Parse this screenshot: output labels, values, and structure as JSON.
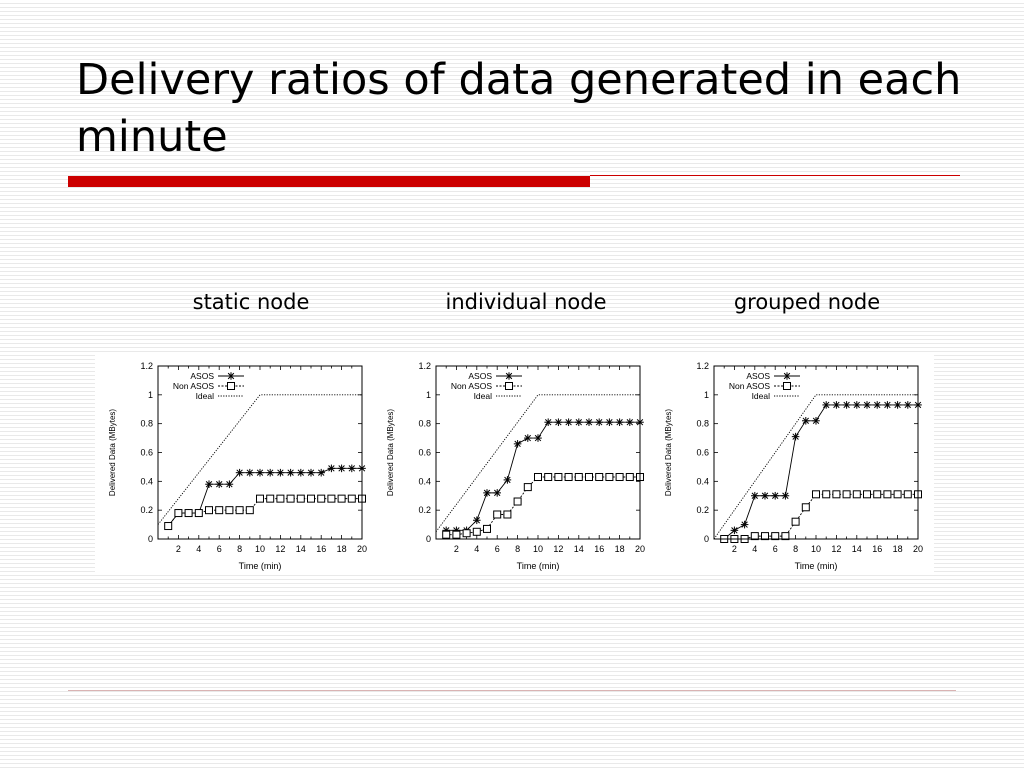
{
  "slide": {
    "title": "Delivery ratios of data generated in each minute",
    "accent_color": "#cc0000",
    "rule_color": "#d9b3b3"
  },
  "captions": [
    "static node",
    "individual node",
    "grouped node"
  ],
  "chart_data": [
    {
      "type": "line",
      "caption": "static node",
      "xlabel": "Time (min)",
      "ylabel": "Delivered Data (MBytes)",
      "xlim": [
        0,
        20
      ],
      "ylim": [
        0,
        1.2
      ],
      "xticks": [
        "2",
        "4",
        "6",
        "8",
        "10",
        "12",
        "14",
        "16",
        "18",
        "20"
      ],
      "yticks": [
        "0",
        "0.2",
        "0.4",
        "0.6",
        "0.8",
        "1",
        "1.2"
      ],
      "legend_position": "top-left",
      "x": [
        1,
        2,
        3,
        4,
        5,
        6,
        7,
        8,
        9,
        10,
        11,
        12,
        13,
        14,
        15,
        16,
        17,
        18,
        19,
        20
      ],
      "series": [
        {
          "name": "ASOS",
          "marker": "asterisk",
          "values": [
            0.09,
            0.18,
            0.18,
            0.18,
            0.38,
            0.38,
            0.38,
            0.46,
            0.46,
            0.46,
            0.46,
            0.46,
            0.46,
            0.46,
            0.46,
            0.46,
            0.49,
            0.49,
            0.49,
            0.49
          ]
        },
        {
          "name": "Non ASOS",
          "marker": "square",
          "values": [
            0.09,
            0.18,
            0.18,
            0.18,
            0.2,
            0.2,
            0.2,
            0.2,
            0.2,
            0.28,
            0.28,
            0.28,
            0.28,
            0.28,
            0.28,
            0.28,
            0.28,
            0.28,
            0.28,
            0.28
          ]
        },
        {
          "name": "Ideal",
          "marker": "none",
          "points": [
            [
              0,
              0.1
            ],
            [
              10,
              1
            ],
            [
              20,
              1
            ]
          ]
        }
      ]
    },
    {
      "type": "line",
      "caption": "individual node",
      "xlabel": "Time (min)",
      "ylabel": "Delivered Data (MBytes)",
      "xlim": [
        0,
        20
      ],
      "ylim": [
        0,
        1.2
      ],
      "xticks": [
        "2",
        "4",
        "6",
        "8",
        "10",
        "12",
        "14",
        "16",
        "18",
        "20"
      ],
      "yticks": [
        "0",
        "0.2",
        "0.4",
        "0.6",
        "0.8",
        "1",
        "1.2"
      ],
      "legend_position": "top-left",
      "x": [
        1,
        2,
        3,
        4,
        5,
        6,
        7,
        8,
        9,
        10,
        11,
        12,
        13,
        14,
        15,
        16,
        17,
        18,
        19,
        20
      ],
      "series": [
        {
          "name": "ASOS",
          "marker": "asterisk",
          "values": [
            0.06,
            0.06,
            0.06,
            0.13,
            0.32,
            0.32,
            0.41,
            0.66,
            0.7,
            0.7,
            0.81,
            0.81,
            0.81,
            0.81,
            0.81,
            0.81,
            0.81,
            0.81,
            0.81,
            0.81
          ]
        },
        {
          "name": "Non ASOS",
          "marker": "square",
          "values": [
            0.03,
            0.03,
            0.04,
            0.05,
            0.07,
            0.17,
            0.17,
            0.26,
            0.36,
            0.43,
            0.43,
            0.43,
            0.43,
            0.43,
            0.43,
            0.43,
            0.43,
            0.43,
            0.43,
            0.43
          ]
        },
        {
          "name": "Ideal",
          "marker": "none",
          "points": [
            [
              0,
              0.05
            ],
            [
              10,
              1
            ],
            [
              20,
              1
            ]
          ]
        }
      ]
    },
    {
      "type": "line",
      "caption": "grouped node",
      "xlabel": "Time (min)",
      "ylabel": "Delivered Data (MBytes)",
      "xlim": [
        0,
        20
      ],
      "ylim": [
        0,
        1.2
      ],
      "xticks": [
        "2",
        "4",
        "6",
        "8",
        "10",
        "12",
        "14",
        "16",
        "18",
        "20"
      ],
      "yticks": [
        "0",
        "0.2",
        "0.4",
        "0.6",
        "0.8",
        "1",
        "1.2"
      ],
      "legend_position": "top-left",
      "x": [
        1,
        2,
        3,
        4,
        5,
        6,
        7,
        8,
        9,
        10,
        11,
        12,
        13,
        14,
        15,
        16,
        17,
        18,
        19,
        20
      ],
      "series": [
        {
          "name": "ASOS",
          "marker": "asterisk",
          "values": [
            0,
            0.06,
            0.1,
            0.3,
            0.3,
            0.3,
            0.3,
            0.71,
            0.82,
            0.82,
            0.93,
            0.93,
            0.93,
            0.93,
            0.93,
            0.93,
            0.93,
            0.93,
            0.93,
            0.93
          ]
        },
        {
          "name": "Non ASOS",
          "marker": "square",
          "values": [
            0,
            0,
            0,
            0.02,
            0.02,
            0.02,
            0.02,
            0.12,
            0.22,
            0.31,
            0.31,
            0.31,
            0.31,
            0.31,
            0.31,
            0.31,
            0.31,
            0.31,
            0.31,
            0.31
          ]
        },
        {
          "name": "Ideal",
          "marker": "none",
          "points": [
            [
              0,
              0
            ],
            [
              10,
              1
            ],
            [
              20,
              1
            ]
          ]
        }
      ]
    }
  ]
}
